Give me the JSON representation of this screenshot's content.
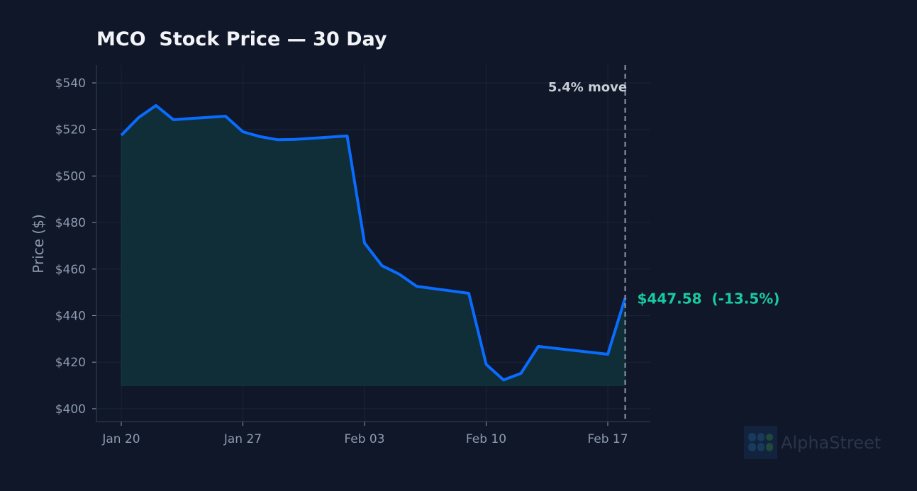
{
  "title": "MCO  Stock Price — 30 Day",
  "watermark": {
    "brand": "AlphaStreet",
    "icon": "alphastreet-logo-icon"
  },
  "colors": {
    "background": "#0f1729",
    "line": "#0a6cff",
    "fill": "#0f2e38",
    "grid": "#1b2538",
    "axis_text": "#8e9aae",
    "last_label": "#1ac9a0",
    "annotation": "#c9ced6"
  },
  "annotation": {
    "label": "5.4% move"
  },
  "last_price_label": "$447.58  (-13.5%)",
  "chart_data": {
    "type": "line",
    "title": "MCO  Stock Price — 30 Day",
    "xlabel": "",
    "ylabel": "Price ($)",
    "ylim": [
      395,
      548
    ],
    "grid": true,
    "y_ticks": [
      "$400",
      "$420",
      "$440",
      "$460",
      "$480",
      "$500",
      "$520",
      "$540"
    ],
    "y_tick_values": [
      400,
      420,
      440,
      460,
      480,
      500,
      520,
      540
    ],
    "x_ticks": [
      "Jan 20",
      "Jan 27",
      "Feb 03",
      "Feb 10",
      "Feb 17"
    ],
    "x_tick_days": [
      0,
      7,
      14,
      21,
      28
    ],
    "x": [
      "Jan 20",
      "Jan 21",
      "Jan 22",
      "Jan 23",
      "Jan 26",
      "Jan 27",
      "Jan 28",
      "Jan 29",
      "Jan 30",
      "Feb 02",
      "Feb 03",
      "Feb 04",
      "Feb 05",
      "Feb 06",
      "Feb 09",
      "Feb 10",
      "Feb 11",
      "Feb 12",
      "Feb 13",
      "Feb 17",
      "Feb 18"
    ],
    "x_days": [
      0,
      1,
      2,
      3,
      6,
      7,
      8,
      9,
      10,
      13,
      14,
      15,
      16,
      17,
      20,
      21,
      22,
      23,
      24,
      28,
      29
    ],
    "series": [
      {
        "name": "MCO",
        "values": [
          517.5,
          525.1,
          530.3,
          524.2,
          525.7,
          519.0,
          516.9,
          515.6,
          515.7,
          517.2,
          471.2,
          461.5,
          457.8,
          452.6,
          449.6,
          419.1,
          412.4,
          415.2,
          426.8,
          423.4,
          447.58
        ]
      }
    ],
    "fill_baseline": 410,
    "annotations": [
      {
        "type": "vline",
        "x_day": 29,
        "style": "dashed",
        "label": "5.4% move"
      },
      {
        "type": "text",
        "label": "$447.58  (-13.5%)",
        "x_day": 29,
        "y": 447.58
      }
    ]
  }
}
